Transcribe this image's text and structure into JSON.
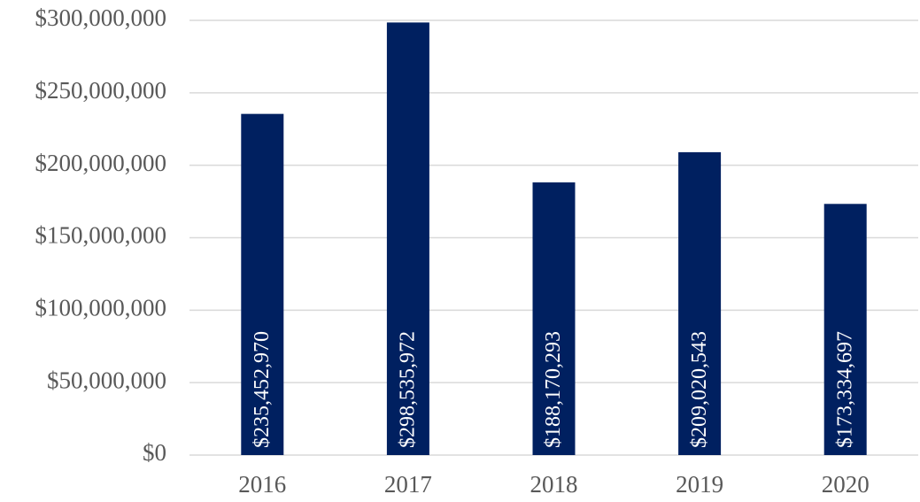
{
  "chart_data": {
    "type": "bar",
    "categories": [
      "2016",
      "2017",
      "2018",
      "2019",
      "2020"
    ],
    "values": [
      235452970,
      298535972,
      188170293,
      209020543,
      173334697
    ],
    "value_labels": [
      "$235,452,970",
      "$298,535,972",
      "$188,170,293",
      "$209,020,543",
      "$173,334,697"
    ],
    "color": "#002060",
    "ylim": [
      0,
      300000000
    ],
    "yticks": [
      {
        "value": 0,
        "label": "$0"
      },
      {
        "value": 50000000,
        "label": "$50,000,000"
      },
      {
        "value": 100000000,
        "label": "$100,000,000"
      },
      {
        "value": 150000000,
        "label": "$150,000,000"
      },
      {
        "value": 200000000,
        "label": "$200,000,000"
      },
      {
        "value": 250000000,
        "label": "$250,000,000"
      },
      {
        "value": 300000000,
        "label": "$300,000,000"
      }
    ],
    "grid": true
  }
}
